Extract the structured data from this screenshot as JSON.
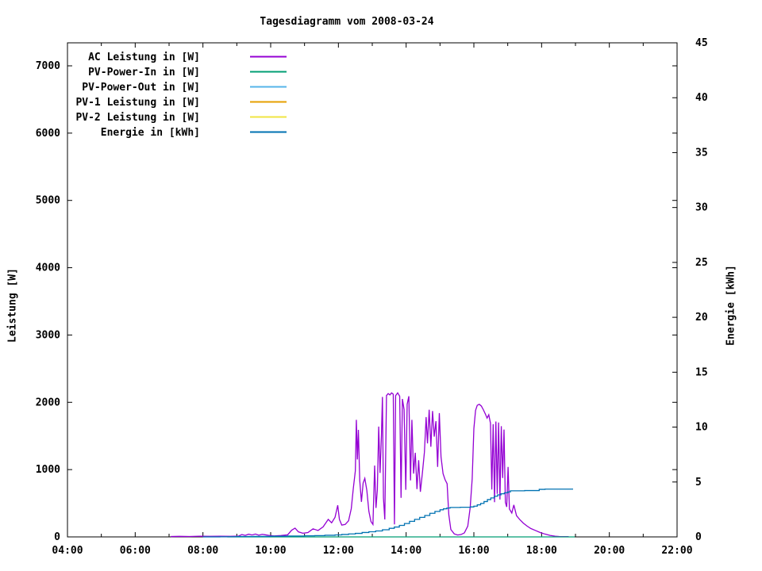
{
  "chart_data": {
    "type": "line",
    "title": "Tagesdiagramm vom 2008-03-24",
    "ylabel": "Leistung [W]",
    "y2label": "Energie [kWh]",
    "colors": {
      "background": "#ffffff",
      "text": "#000000",
      "border": "#000000"
    },
    "legend_position": "top-left-inside",
    "grid": false,
    "x_axis": {
      "min": 4,
      "max": 22,
      "major_hours": [
        4,
        6,
        8,
        10,
        12,
        14,
        16,
        18,
        20,
        22
      ],
      "minor_hours": [
        5,
        7,
        9,
        11,
        13,
        15,
        17,
        19,
        21
      ],
      "tick_labels": [
        "04:00",
        "06:00",
        "08:00",
        "10:00",
        "12:00",
        "14:00",
        "16:00",
        "18:00",
        "20:00",
        "22:00"
      ]
    },
    "y_axis": {
      "label": "Leistung [W]",
      "min": 0,
      "ticks": [
        0,
        1000,
        2000,
        3000,
        4000,
        5000,
        6000,
        7000
      ]
    },
    "y2_axis": {
      "label": "Energie [kWh]",
      "min": 0,
      "max": 45,
      "ticks": [
        0,
        5,
        10,
        15,
        20,
        25,
        30,
        35,
        40,
        45
      ]
    },
    "draw_order": [
      2,
      3,
      4,
      0,
      1,
      5
    ],
    "series": [
      {
        "name": "AC Leistung in [W]",
        "color": "#9400d3",
        "axis": "y1",
        "style": "line",
        "points": [
          [
            7.05,
            5
          ],
          [
            7.3,
            8
          ],
          [
            7.6,
            6
          ],
          [
            7.9,
            10
          ],
          [
            8.2,
            8
          ],
          [
            8.5,
            10
          ],
          [
            8.8,
            8
          ],
          [
            9.05,
            12
          ],
          [
            9.15,
            35
          ],
          [
            9.25,
            22
          ],
          [
            9.35,
            40
          ],
          [
            9.45,
            28
          ],
          [
            9.55,
            42
          ],
          [
            9.65,
            25
          ],
          [
            9.75,
            38
          ],
          [
            9.85,
            30
          ],
          [
            9.95,
            22
          ],
          [
            10.1,
            15
          ],
          [
            10.3,
            20
          ],
          [
            10.5,
            30
          ],
          [
            10.62,
            100
          ],
          [
            10.72,
            130
          ],
          [
            10.82,
            75
          ],
          [
            10.95,
            55
          ],
          [
            11.1,
            65
          ],
          [
            11.25,
            120
          ],
          [
            11.4,
            95
          ],
          [
            11.55,
            150
          ],
          [
            11.7,
            260
          ],
          [
            11.8,
            210
          ],
          [
            11.9,
            290
          ],
          [
            11.98,
            470
          ],
          [
            12.03,
            260
          ],
          [
            12.1,
            175
          ],
          [
            12.2,
            185
          ],
          [
            12.3,
            240
          ],
          [
            12.38,
            420
          ],
          [
            12.44,
            720
          ],
          [
            12.5,
            980
          ],
          [
            12.53,
            1740
          ],
          [
            12.56,
            1150
          ],
          [
            12.59,
            1590
          ],
          [
            12.63,
            840
          ],
          [
            12.68,
            520
          ],
          [
            12.73,
            800
          ],
          [
            12.78,
            870
          ],
          [
            12.84,
            690
          ],
          [
            12.9,
            380
          ],
          [
            12.96,
            230
          ],
          [
            13.02,
            185
          ],
          [
            13.07,
            1060
          ],
          [
            13.11,
            430
          ],
          [
            13.15,
            700
          ],
          [
            13.19,
            1640
          ],
          [
            13.23,
            950
          ],
          [
            13.27,
            1500
          ],
          [
            13.3,
            2080
          ],
          [
            13.33,
            580
          ],
          [
            13.37,
            260
          ],
          [
            13.42,
            2100
          ],
          [
            13.47,
            2130
          ],
          [
            13.52,
            2110
          ],
          [
            13.57,
            2140
          ],
          [
            13.62,
            2120
          ],
          [
            13.655,
            185
          ],
          [
            13.69,
            2100
          ],
          [
            13.75,
            2140
          ],
          [
            13.81,
            2090
          ],
          [
            13.85,
            580
          ],
          [
            13.89,
            2050
          ],
          [
            13.94,
            1890
          ],
          [
            13.99,
            700
          ],
          [
            14.03,
            1970
          ],
          [
            14.08,
            2090
          ],
          [
            14.13,
            840
          ],
          [
            14.17,
            1740
          ],
          [
            14.22,
            940
          ],
          [
            14.27,
            1250
          ],
          [
            14.32,
            710
          ],
          [
            14.37,
            1140
          ],
          [
            14.42,
            670
          ],
          [
            14.48,
            950
          ],
          [
            14.54,
            1260
          ],
          [
            14.59,
            1780
          ],
          [
            14.63,
            1390
          ],
          [
            14.68,
            1890
          ],
          [
            14.73,
            1340
          ],
          [
            14.78,
            1870
          ],
          [
            14.83,
            1490
          ],
          [
            14.88,
            1720
          ],
          [
            14.93,
            1040
          ],
          [
            14.98,
            1840
          ],
          [
            15.03,
            1190
          ],
          [
            15.09,
            940
          ],
          [
            15.15,
            850
          ],
          [
            15.21,
            790
          ],
          [
            15.26,
            330
          ],
          [
            15.32,
            110
          ],
          [
            15.42,
            45
          ],
          [
            15.52,
            28
          ],
          [
            15.62,
            35
          ],
          [
            15.72,
            60
          ],
          [
            15.82,
            160
          ],
          [
            15.89,
            430
          ],
          [
            15.95,
            860
          ],
          [
            16.0,
            1610
          ],
          [
            16.05,
            1880
          ],
          [
            16.1,
            1955
          ],
          [
            16.16,
            1970
          ],
          [
            16.22,
            1945
          ],
          [
            16.28,
            1890
          ],
          [
            16.34,
            1825
          ],
          [
            16.39,
            1765
          ],
          [
            16.44,
            1815
          ],
          [
            16.49,
            1690
          ],
          [
            16.53,
            705
          ],
          [
            16.57,
            1675
          ],
          [
            16.61,
            515
          ],
          [
            16.65,
            1715
          ],
          [
            16.69,
            640
          ],
          [
            16.73,
            1700
          ],
          [
            16.77,
            555
          ],
          [
            16.81,
            1645
          ],
          [
            16.85,
            875
          ],
          [
            16.89,
            1595
          ],
          [
            16.93,
            515
          ],
          [
            16.97,
            445
          ],
          [
            17.01,
            1040
          ],
          [
            17.05,
            415
          ],
          [
            17.12,
            355
          ],
          [
            17.18,
            475
          ],
          [
            17.26,
            315
          ],
          [
            17.36,
            255
          ],
          [
            17.46,
            205
          ],
          [
            17.56,
            165
          ],
          [
            17.68,
            125
          ],
          [
            17.82,
            95
          ],
          [
            17.96,
            65
          ],
          [
            18.1,
            42
          ],
          [
            18.25,
            22
          ],
          [
            18.4,
            10
          ],
          [
            18.52,
            5
          ],
          [
            18.72,
            4
          ],
          [
            18.8,
            4
          ]
        ]
      },
      {
        "name": "PV-Power-In in [W]",
        "color": "#009e73",
        "axis": "y1",
        "style": "line",
        "points": [
          [
            8.72,
            0
          ],
          [
            18.98,
            0
          ]
        ]
      },
      {
        "name": "PV-Power-Out in [W]",
        "color": "#56b4e9",
        "axis": "y1",
        "style": "line",
        "points": []
      },
      {
        "name": "PV-1 Leistung in [W]",
        "color": "#e69f00",
        "axis": "y1",
        "style": "line",
        "points": []
      },
      {
        "name": "PV-2 Leistung in [W]",
        "color": "#f0e442",
        "axis": "y1",
        "style": "line",
        "points": []
      },
      {
        "name": "Energie in [kWh]",
        "color": "#0072b2",
        "axis": "y2",
        "style": "steps",
        "points": [
          [
            8.0,
            0.0
          ],
          [
            8.5,
            0.01
          ],
          [
            9.0,
            0.03
          ],
          [
            9.5,
            0.04
          ],
          [
            10.0,
            0.06
          ],
          [
            10.5,
            0.08
          ],
          [
            11.0,
            0.1
          ],
          [
            11.3,
            0.12
          ],
          [
            11.6,
            0.15
          ],
          [
            11.9,
            0.18
          ],
          [
            12.1,
            0.22
          ],
          [
            12.3,
            0.27
          ],
          [
            12.5,
            0.32
          ],
          [
            12.7,
            0.4
          ],
          [
            12.9,
            0.47
          ],
          [
            13.1,
            0.54
          ],
          [
            13.3,
            0.65
          ],
          [
            13.5,
            0.78
          ],
          [
            13.65,
            0.9
          ],
          [
            13.8,
            1.05
          ],
          [
            13.95,
            1.22
          ],
          [
            14.1,
            1.42
          ],
          [
            14.25,
            1.6
          ],
          [
            14.4,
            1.78
          ],
          [
            14.55,
            1.95
          ],
          [
            14.7,
            2.15
          ],
          [
            14.85,
            2.32
          ],
          [
            15.0,
            2.47
          ],
          [
            15.1,
            2.56
          ],
          [
            15.2,
            2.63
          ],
          [
            15.3,
            2.68
          ],
          [
            15.6,
            2.7
          ],
          [
            15.9,
            2.73
          ],
          [
            16.0,
            2.8
          ],
          [
            16.1,
            2.92
          ],
          [
            16.2,
            3.05
          ],
          [
            16.3,
            3.22
          ],
          [
            16.4,
            3.4
          ],
          [
            16.5,
            3.55
          ],
          [
            16.6,
            3.7
          ],
          [
            16.7,
            3.83
          ],
          [
            16.8,
            3.93
          ],
          [
            16.9,
            4.02
          ],
          [
            17.0,
            4.1
          ],
          [
            17.08,
            4.2
          ],
          [
            17.5,
            4.22
          ],
          [
            17.93,
            4.33
          ],
          [
            18.1,
            4.35
          ],
          [
            18.93,
            4.35
          ]
        ]
      }
    ]
  }
}
